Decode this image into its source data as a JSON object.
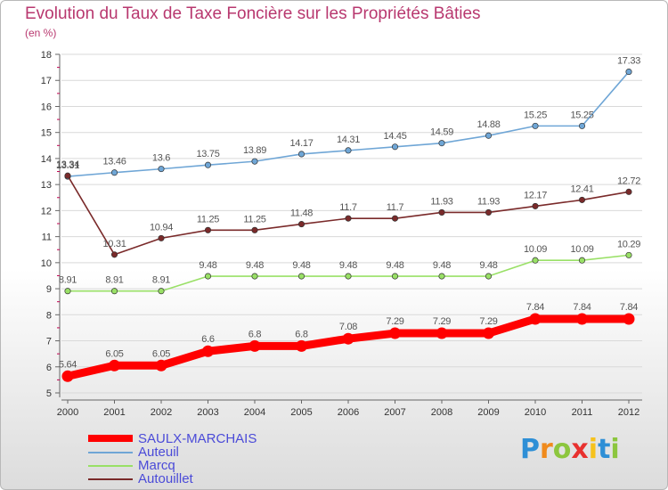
{
  "header": {
    "title": "Evolution du Taux de Taxe Foncière sur les Propriétés Bâties",
    "unit": "(en %)"
  },
  "chart_data": {
    "type": "line",
    "title": "Evolution du Taux de Taxe Foncière sur les Propriétés Bâties",
    "ylabel": "(en %)",
    "xlabel": "",
    "ylim": [
      5,
      18
    ],
    "yticks": [
      "5",
      "6",
      "7",
      "8",
      "9",
      "10",
      "11",
      "12",
      "13",
      "14",
      "15",
      "16",
      "17",
      "18"
    ],
    "categories": [
      "2000",
      "2001",
      "2002",
      "2003",
      "2004",
      "2005",
      "2006",
      "2007",
      "2008",
      "2009",
      "2010",
      "2011",
      "2012"
    ],
    "series": [
      {
        "name": "SAULX-MARCHAIS",
        "color": "#ff0000",
        "values": [
          5.64,
          6.05,
          6.05,
          6.6,
          6.8,
          6.8,
          7.08,
          7.29,
          7.29,
          7.29,
          7.84,
          7.84,
          7.84
        ],
        "labels": [
          "5.64",
          "6.05",
          "6.05",
          "6.6",
          "6.8",
          "6.8",
          "7.08",
          "7.29",
          "7.29",
          "7.29",
          "7.84",
          "7.84",
          "7.84"
        ]
      },
      {
        "name": "Auteuil",
        "color": "#6fa6d6",
        "values": [
          13.31,
          13.46,
          13.6,
          13.75,
          13.89,
          14.17,
          14.31,
          14.45,
          14.59,
          14.88,
          15.25,
          15.25,
          17.33
        ],
        "labels": [
          "13.31",
          "13.46",
          "13.6",
          "13.75",
          "13.89",
          "14.17",
          "14.31",
          "14.45",
          "14.59",
          "14.88",
          "15.25",
          "15.25",
          "17.33"
        ]
      },
      {
        "name": "Marcq",
        "color": "#99e066",
        "values": [
          8.91,
          8.91,
          8.91,
          9.48,
          9.48,
          9.48,
          9.48,
          9.48,
          9.48,
          9.48,
          10.09,
          10.09,
          10.29
        ],
        "labels": [
          "8.91",
          "8.91",
          "8.91",
          "9.48",
          "9.48",
          "9.48",
          "9.48",
          "9.48",
          "9.48",
          "9.48",
          "10.09",
          "10.09",
          "10.29"
        ]
      },
      {
        "name": "Autouillet",
        "color": "#7a2a2a",
        "values": [
          13.34,
          10.31,
          10.94,
          11.25,
          11.25,
          11.48,
          11.7,
          11.7,
          11.93,
          11.93,
          12.17,
          12.41,
          12.72
        ],
        "labels": [
          "13.34",
          "10.31",
          "10.94",
          "11.25",
          "11.25",
          "11.48",
          "11.7",
          "11.7",
          "11.93",
          "11.93",
          "12.17",
          "12.41",
          "12.72"
        ]
      }
    ],
    "legend_position": "bottom-left"
  },
  "logo": {
    "letters": [
      "P",
      "r",
      "o",
      "x",
      "i",
      "t",
      "i"
    ]
  }
}
